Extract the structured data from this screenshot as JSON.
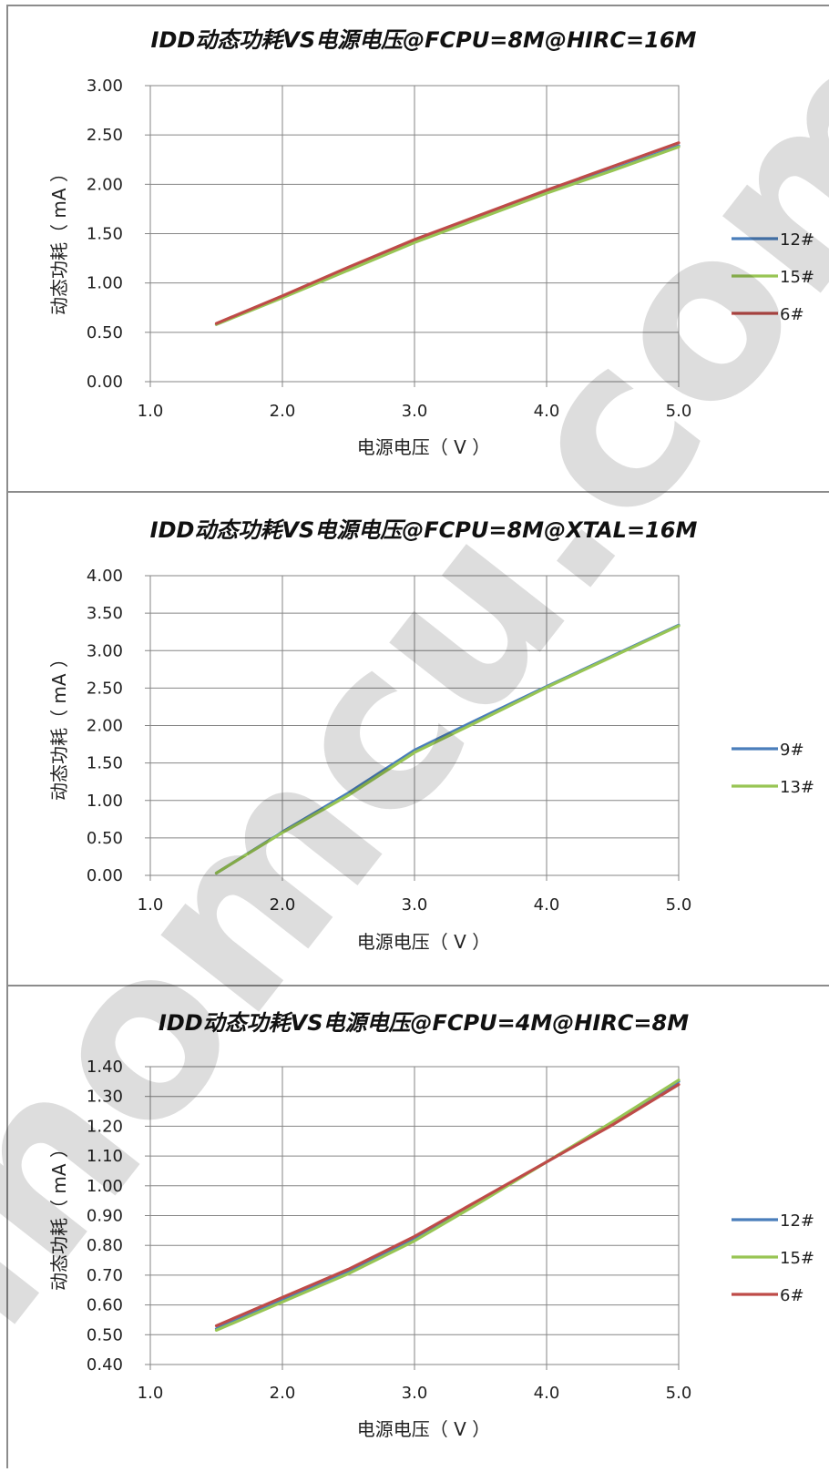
{
  "chart_data": [
    {
      "type": "line",
      "title": "IDD动态功耗VS电源电压@FCPU=8M@HIRC=16M",
      "xlabel": "电源电压（ V ）",
      "ylabel": "动态功耗（ mA ）",
      "xlim": [
        1.0,
        5.0
      ],
      "ylim": [
        0.0,
        3.0
      ],
      "xticks": [
        "1.0",
        "2.0",
        "3.0",
        "4.0",
        "5.0"
      ],
      "yticks": [
        "0.00",
        "0.50",
        "1.00",
        "1.50",
        "2.00",
        "2.50",
        "3.00"
      ],
      "grid": true,
      "legend_position": "right",
      "series": [
        {
          "name": "12#",
          "color": "#4a7ebb",
          "x": [
            1.5,
            2.0,
            2.5,
            3.0,
            3.5,
            4.0,
            4.5,
            5.0
          ],
          "values": [
            0.58,
            0.86,
            1.14,
            1.42,
            1.67,
            1.92,
            2.15,
            2.39
          ]
        },
        {
          "name": "15#",
          "color": "#98c554",
          "x": [
            1.5,
            2.0,
            2.5,
            3.0,
            3.5,
            4.0,
            4.5,
            5.0
          ],
          "values": [
            0.58,
            0.85,
            1.13,
            1.41,
            1.66,
            1.91,
            2.14,
            2.38
          ]
        },
        {
          "name": "6#",
          "color": "#be4b48",
          "x": [
            1.5,
            2.0,
            2.5,
            3.0,
            3.5,
            4.0,
            4.5,
            5.0
          ],
          "values": [
            0.59,
            0.87,
            1.16,
            1.44,
            1.69,
            1.94,
            2.18,
            2.42
          ]
        }
      ]
    },
    {
      "type": "line",
      "title": "IDD动态功耗VS电源电压@FCPU=8M@XTAL=16M",
      "xlabel": "电源电压（ V ）",
      "ylabel": "动态功耗（ mA ）",
      "xlim": [
        1.0,
        5.0
      ],
      "ylim": [
        0.0,
        4.0
      ],
      "xticks": [
        "1.0",
        "2.0",
        "3.0",
        "4.0",
        "5.0"
      ],
      "yticks": [
        "0.00",
        "0.50",
        "1.00",
        "1.50",
        "2.00",
        "2.50",
        "3.00",
        "3.50",
        "4.00"
      ],
      "grid": true,
      "legend_position": "right",
      "series": [
        {
          "name": "9#",
          "color": "#4a7ebb",
          "x": [
            1.5,
            2.0,
            2.5,
            3.0,
            3.5,
            4.0,
            4.5,
            5.0
          ],
          "values": [
            0.03,
            0.58,
            1.1,
            1.67,
            2.1,
            2.52,
            2.93,
            3.34
          ]
        },
        {
          "name": "13#",
          "color": "#98c554",
          "x": [
            1.5,
            2.0,
            2.5,
            3.0,
            3.5,
            4.0,
            4.5,
            5.0
          ],
          "values": [
            0.03,
            0.57,
            1.07,
            1.64,
            2.07,
            2.51,
            2.92,
            3.33
          ]
        }
      ]
    },
    {
      "type": "line",
      "title": "IDD动态功耗VS电源电压@FCPU=4M@HIRC=8M",
      "xlabel": "电源电压（ V ）",
      "ylabel": "动态功耗（ mA ）",
      "xlim": [
        1.0,
        5.0
      ],
      "ylim": [
        0.4,
        1.4
      ],
      "xticks": [
        "1.0",
        "2.0",
        "3.0",
        "4.0",
        "5.0"
      ],
      "yticks": [
        "0.40",
        "0.50",
        "0.60",
        "0.70",
        "0.80",
        "0.90",
        "1.00",
        "1.10",
        "1.20",
        "1.30",
        "1.40"
      ],
      "grid": true,
      "legend_position": "right",
      "series": [
        {
          "name": "12#",
          "color": "#4a7ebb",
          "x": [
            1.5,
            2.0,
            2.5,
            3.0,
            3.5,
            4.0,
            4.5,
            5.0
          ],
          "values": [
            0.52,
            0.615,
            0.71,
            0.82,
            0.95,
            1.08,
            1.21,
            1.35
          ]
        },
        {
          "name": "15#",
          "color": "#98c554",
          "x": [
            1.5,
            2.0,
            2.5,
            3.0,
            3.5,
            4.0,
            4.5,
            5.0
          ],
          "values": [
            0.515,
            0.61,
            0.705,
            0.815,
            0.945,
            1.08,
            1.215,
            1.355
          ]
        },
        {
          "name": "6#",
          "color": "#be4b48",
          "x": [
            1.5,
            2.0,
            2.5,
            3.0,
            3.5,
            4.0,
            4.5,
            5.0
          ],
          "values": [
            0.53,
            0.625,
            0.72,
            0.83,
            0.955,
            1.08,
            1.205,
            1.34
          ]
        }
      ]
    }
  ],
  "watermark": {
    "text": "sinomcu.com"
  }
}
